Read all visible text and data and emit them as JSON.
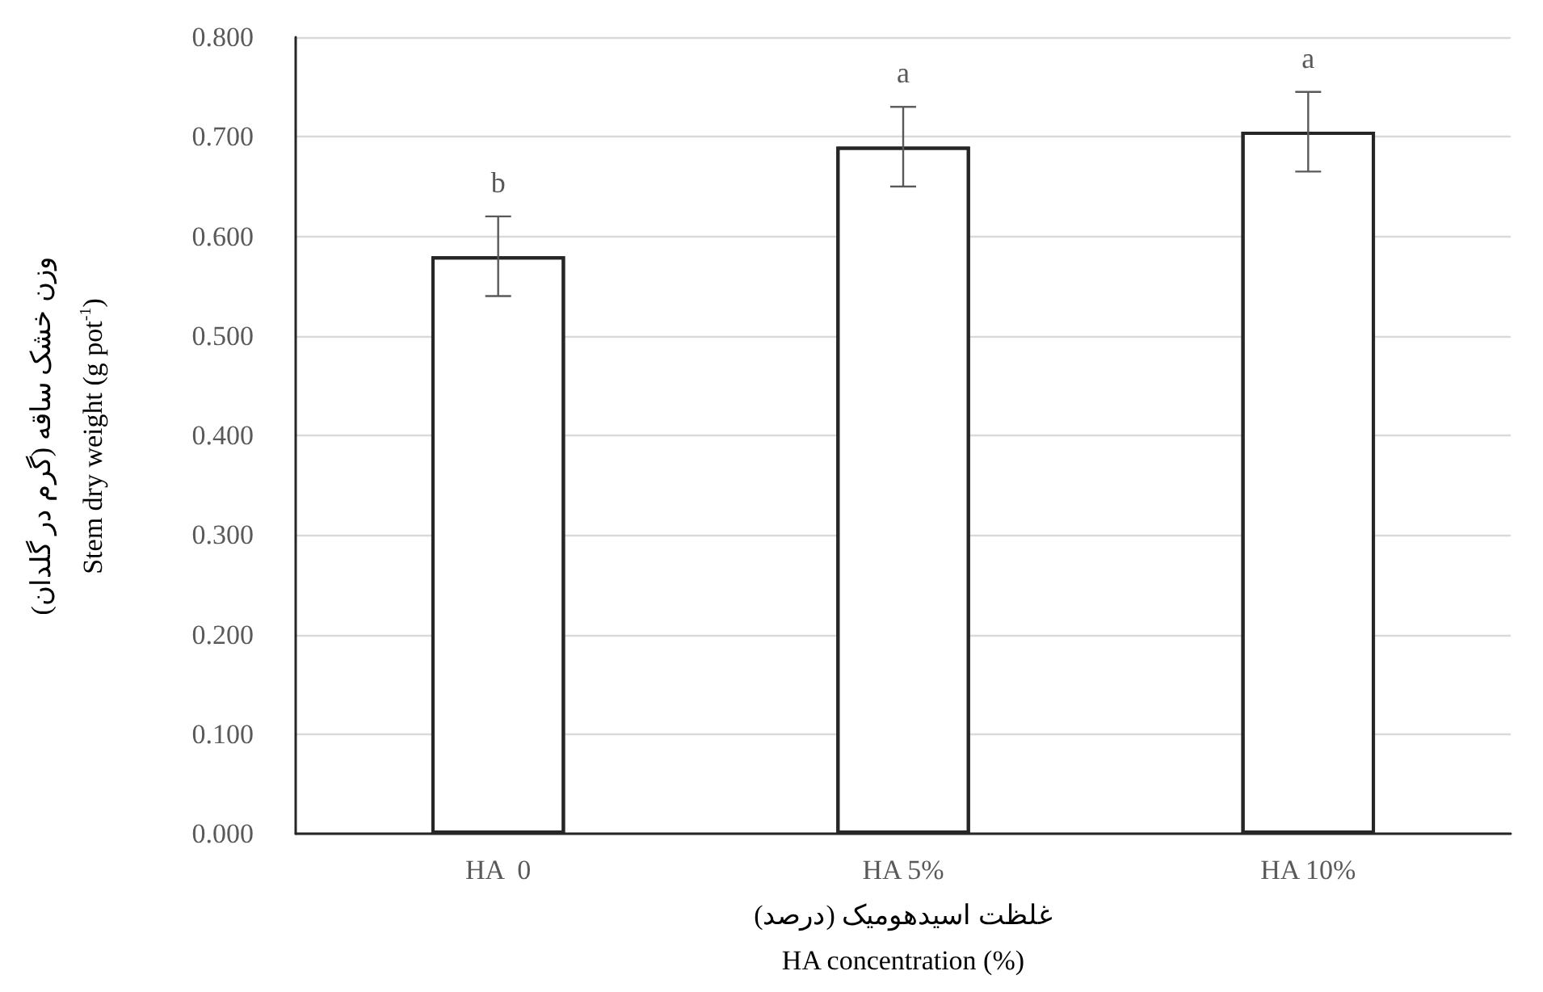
{
  "chart_data": {
    "type": "bar",
    "categories": [
      "HA  0",
      "HA 5%",
      "HA 10%"
    ],
    "values": [
      0.58,
      0.69,
      0.705
    ],
    "errors": [
      0.04,
      0.04,
      0.04
    ],
    "color": "#ffffff",
    "xlabel": "غلظت اسیدهومیک (درصد)\nHA concentration (%)",
    "ylabel": "وزن خشک ساقه  (گرم در گلدان)\nStem dry weight  (g pot$^{-1}$)",
    "ylim": [
      0,
      0.8
    ],
    "yticks": [
      {
        "value": 0,
        "label": "0.000"
      },
      {
        "value": 0.1,
        "label": "0.100"
      },
      {
        "value": 0.2,
        "label": "0.200"
      },
      {
        "value": 0.3,
        "label": "0.300"
      },
      {
        "value": 0.4,
        "label": "0.400"
      },
      {
        "value": 0.5,
        "label": "0.500"
      },
      {
        "value": 0.6,
        "label": "0.600"
      },
      {
        "value": 0.7,
        "label": "0.700"
      },
      {
        "value": 0.8,
        "label": "0.800"
      }
    ],
    "grid": "y",
    "annotations": [
      "b",
      "a",
      "a"
    ]
  }
}
